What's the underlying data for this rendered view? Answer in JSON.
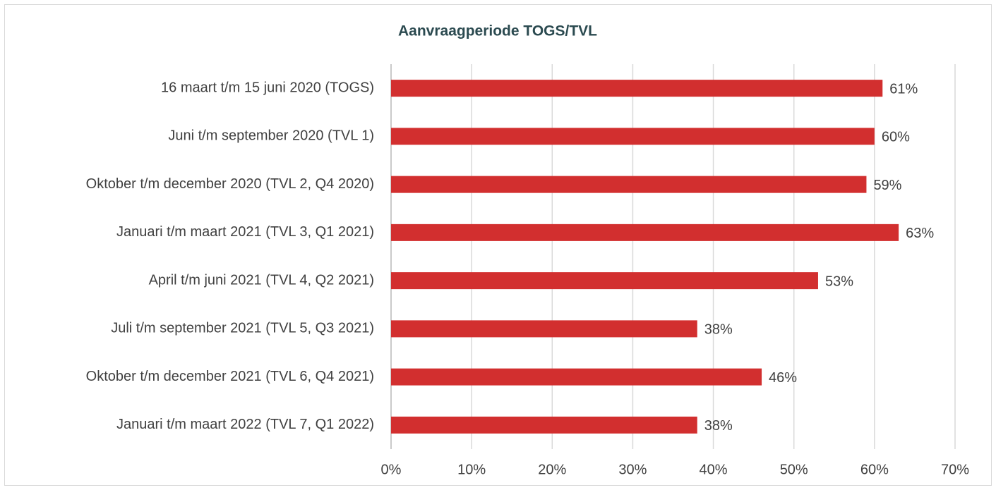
{
  "chart_data": {
    "type": "hbar",
    "title": "Aanvraagperiode TOGS/TVL",
    "categories": [
      "16 maart t/m 15 juni 2020 (TOGS)",
      "Juni t/m september 2020 (TVL 1)",
      "Oktober t/m december 2020 (TVL 2, Q4 2020)",
      "Januari t/m maart 2021 (TVL 3, Q1 2021)",
      "April t/m juni 2021 (TVL 4, Q2 2021)",
      "Juli t/m september 2021 (TVL 5, Q3 2021)",
      "Oktober t/m december 2021 (TVL 6, Q4 2021)",
      "Januari t/m maart 2022 (TVL 7, Q1 2022)"
    ],
    "values": [
      61,
      60,
      59,
      63,
      53,
      38,
      46,
      38
    ],
    "value_labels": [
      "61%",
      "60%",
      "59%",
      "63%",
      "53%",
      "38%",
      "46%",
      "38%"
    ],
    "color": "#d22f2f",
    "xlim": [
      0,
      70
    ],
    "xticks": [
      {
        "value": 0,
        "label": "0%"
      },
      {
        "value": 10,
        "label": "10%"
      },
      {
        "value": 20,
        "label": "20%"
      },
      {
        "value": 30,
        "label": "30%"
      },
      {
        "value": 40,
        "label": "40%"
      },
      {
        "value": 50,
        "label": "50%"
      },
      {
        "value": 60,
        "label": "60%"
      },
      {
        "value": 70,
        "label": "70%"
      }
    ],
    "grid": true
  }
}
